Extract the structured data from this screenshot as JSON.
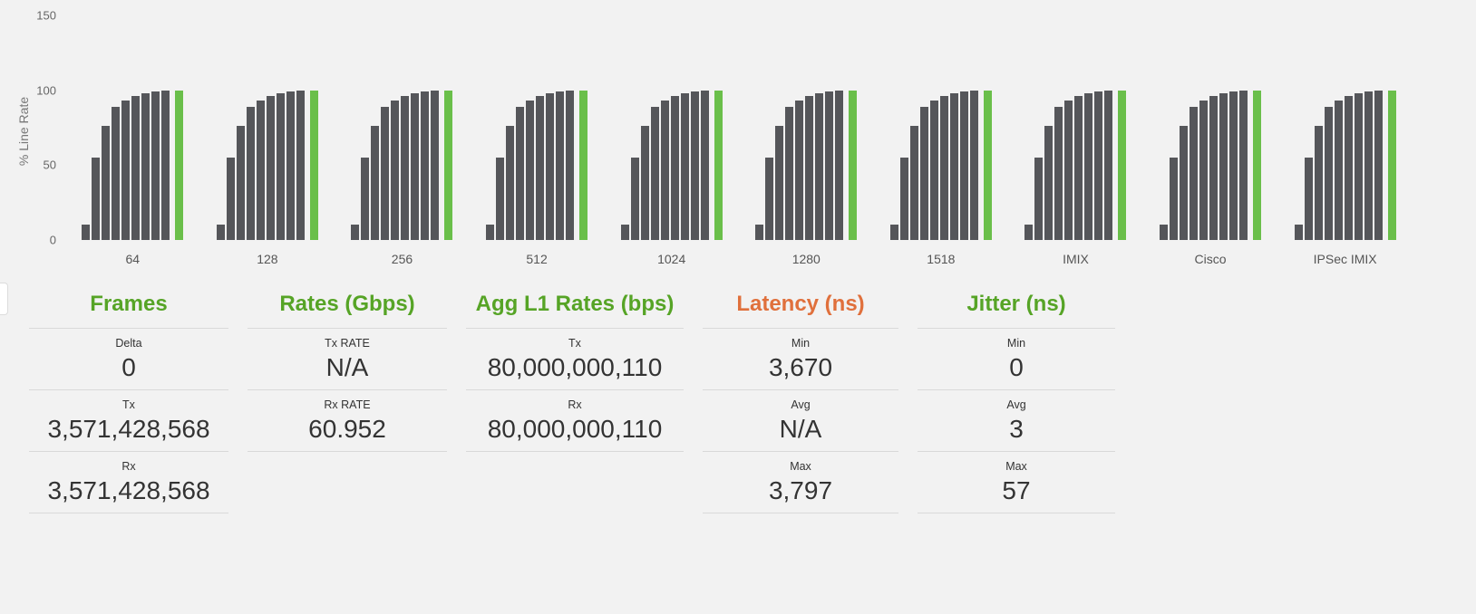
{
  "chart_data": {
    "type": "bar",
    "title": "",
    "xlabel": "",
    "ylabel": "% Line Rate",
    "ylim": [
      0,
      150
    ],
    "yticks": [
      0,
      50,
      100,
      150
    ],
    "grid": "off",
    "legend": "none",
    "categories": [
      "64",
      "128",
      "256",
      "512",
      "1024",
      "1280",
      "1518",
      "IMIX",
      "Cisco",
      "IPSec IMIX"
    ],
    "ramp_values": [
      10,
      55,
      76,
      89,
      93,
      96,
      98,
      99,
      100
    ],
    "final_value": 100,
    "series_note": "Each frame-size category shows the same ramp of gray bars rising to 100% line rate, followed by one green highlight bar at 100%.",
    "bar_color": "#55565a",
    "final_bar_color": "#6abf4a"
  },
  "stats": {
    "panels": [
      {
        "title": "Frames",
        "title_color": "#56a426",
        "rows": [
          {
            "label": "Delta",
            "value": "0"
          },
          {
            "label": "Tx",
            "value": "3,571,428,568"
          },
          {
            "label": "Rx",
            "value": "3,571,428,568"
          }
        ]
      },
      {
        "title": "Rates (Gbps)",
        "title_color": "#56a426",
        "rows": [
          {
            "label": "Tx RATE",
            "value": "N/A"
          },
          {
            "label": "Rx RATE",
            "value": "60.952"
          }
        ]
      },
      {
        "title": "Agg L1 Rates (bps)",
        "title_color": "#56a426",
        "rows": [
          {
            "label": "Tx",
            "value": "80,000,000,110"
          },
          {
            "label": "Rx",
            "value": "80,000,000,110"
          }
        ]
      },
      {
        "title": "Latency (ns)",
        "title_color": "#e0703c",
        "rows": [
          {
            "label": "Min",
            "value": "3,670"
          },
          {
            "label": "Avg",
            "value": "N/A"
          },
          {
            "label": "Max",
            "value": "3,797"
          }
        ]
      },
      {
        "title": "Jitter (ns)",
        "title_color": "#56a426",
        "rows": [
          {
            "label": "Min",
            "value": "0"
          },
          {
            "label": "Avg",
            "value": "3"
          },
          {
            "label": "Max",
            "value": "57"
          }
        ]
      }
    ]
  }
}
